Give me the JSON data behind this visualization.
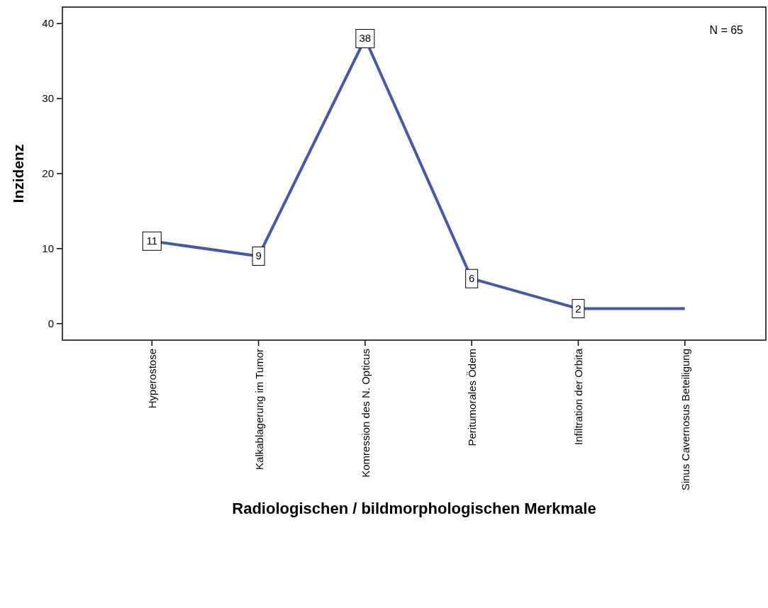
{
  "chart_data": {
    "type": "line",
    "xlabel": "Radiologischen / bildmorphologischen Merkmale",
    "ylabel": "Inzidenz",
    "annotations": [
      "N = 65"
    ],
    "categories": [
      "Hyperostose",
      "Kalkablagerung im Tumor",
      "Komression des N. Opticus",
      "Peritumorales Ödem",
      "Infiltration der Orbita",
      "Sinus Cavernosus Beteiligung"
    ],
    "series": [
      {
        "color": "#4358b0",
        "values": [
          11,
          9,
          38,
          6,
          2,
          2
        ],
        "value_labels": [
          "11",
          "9",
          "38",
          "6",
          "2",
          null
        ]
      }
    ],
    "ylim": [
      -2.2,
      42.2
    ],
    "yticks": [
      0,
      10,
      20,
      30,
      40
    ],
    "grid": false,
    "marker": "square",
    "line_style": "solid"
  }
}
